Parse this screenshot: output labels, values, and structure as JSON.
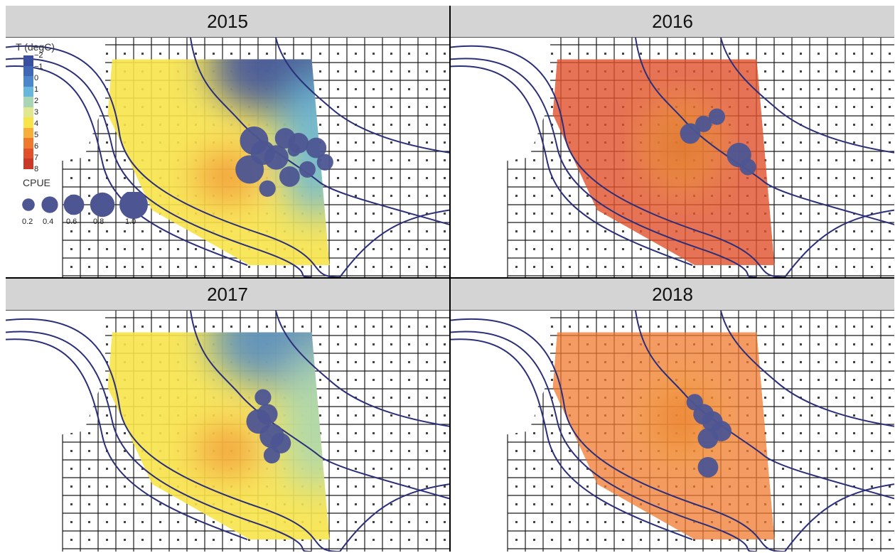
{
  "panels": [
    {
      "year": "2015",
      "field": "cold",
      "dots": [
        [
          0.56,
          0.43
        ],
        [
          0.58,
          0.48
        ],
        [
          0.55,
          0.55
        ],
        [
          0.61,
          0.5
        ],
        [
          0.63,
          0.42
        ],
        [
          0.66,
          0.44
        ],
        [
          0.64,
          0.58
        ],
        [
          0.68,
          0.55
        ],
        [
          0.72,
          0.52
        ],
        [
          0.7,
          0.46
        ],
        [
          0.59,
          0.63
        ],
        [
          0.65,
          0.47
        ]
      ],
      "dot_sizes": [
        1.0,
        0.8,
        1.0,
        0.8,
        0.6,
        0.6,
        0.6,
        0.4,
        0.4,
        0.6,
        0.4,
        0.2
      ]
    },
    {
      "year": "2016",
      "field": "warm",
      "dots": [
        [
          0.54,
          0.4
        ],
        [
          0.57,
          0.36
        ],
        [
          0.6,
          0.33
        ],
        [
          0.65,
          0.49
        ],
        [
          0.67,
          0.54
        ]
      ],
      "dot_sizes": [
        0.6,
        0.4,
        0.4,
        0.8,
        0.4
      ]
    },
    {
      "year": "2017",
      "field": "cold-mild",
      "dots": [
        [
          0.57,
          0.46
        ],
        [
          0.58,
          0.36
        ],
        [
          0.6,
          0.52
        ],
        [
          0.62,
          0.55
        ],
        [
          0.6,
          0.6
        ],
        [
          0.59,
          0.43
        ]
      ],
      "dot_sizes": [
        0.8,
        0.4,
        0.8,
        0.6,
        0.4,
        0.6
      ]
    },
    {
      "year": "2018",
      "field": "warm-mild",
      "dots": [
        [
          0.55,
          0.38
        ],
        [
          0.57,
          0.43
        ],
        [
          0.59,
          0.46
        ],
        [
          0.61,
          0.5
        ],
        [
          0.58,
          0.53
        ],
        [
          0.58,
          0.65
        ]
      ],
      "dot_sizes": [
        0.4,
        0.6,
        0.6,
        0.6,
        0.6,
        0.6
      ]
    }
  ],
  "legend": {
    "title": "T (degC)",
    "ticks": [
      "−2",
      "−1",
      "0",
      "1",
      "2",
      "3",
      "4",
      "5",
      "6",
      "7",
      "8"
    ],
    "colors": [
      "#3a4f9f",
      "#3f67b5",
      "#4a86c9",
      "#67b6dc",
      "#a8d6b4",
      "#dfe88f",
      "#f7e34a",
      "#f6b03a",
      "#ef7a2e",
      "#e0502a",
      "#c83a27"
    ],
    "cpue_title": "CPUE",
    "cpue_labels": [
      "0.2",
      "0.4",
      "0.6",
      "0.8",
      "1.0"
    ],
    "dot_color": "#4d5592"
  }
}
